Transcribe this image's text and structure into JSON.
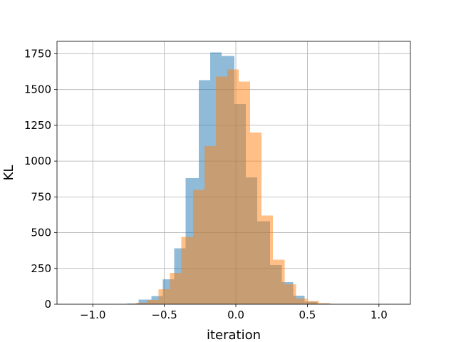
{
  "chart_data": {
    "type": "bar",
    "title": "",
    "xlabel": "iteration",
    "ylabel": "KL",
    "xlim": [
      -1.25,
      1.22
    ],
    "ylim": [
      0,
      1837
    ],
    "grid": true,
    "xticks": [
      -1.0,
      -0.5,
      0.0,
      0.5,
      1.0
    ],
    "xtick_labels": [
      "−1.0",
      "−0.5",
      "0.0",
      "0.5",
      "1.0"
    ],
    "yticks": [
      0,
      250,
      500,
      750,
      1000,
      1250,
      1500,
      1750
    ],
    "ytick_labels": [
      "0",
      "250",
      "500",
      "750",
      "1000",
      "1250",
      "1500",
      "1750"
    ],
    "series": [
      {
        "color": "#1f77b4",
        "alpha": 0.5,
        "bins": [
          [
            -0.86,
            -0.76,
            1
          ],
          [
            -0.76,
            -0.68,
            5
          ],
          [
            -0.68,
            -0.59,
            33
          ],
          [
            -0.59,
            -0.51,
            58
          ],
          [
            -0.51,
            -0.43,
            175
          ],
          [
            -0.43,
            -0.35,
            390
          ],
          [
            -0.35,
            -0.26,
            880
          ],
          [
            -0.26,
            -0.18,
            1565
          ],
          [
            -0.18,
            -0.1,
            1760
          ],
          [
            -0.1,
            -0.01,
            1735
          ],
          [
            -0.01,
            0.07,
            1400
          ],
          [
            0.07,
            0.15,
            885
          ],
          [
            0.15,
            0.24,
            580
          ],
          [
            0.24,
            0.32,
            275
          ],
          [
            0.32,
            0.4,
            155
          ],
          [
            0.4,
            0.48,
            60
          ],
          [
            0.48,
            0.57,
            18
          ],
          [
            0.57,
            0.65,
            5
          ]
        ]
      },
      {
        "color": "#ff7f0e",
        "alpha": 0.5,
        "bins": [
          [
            -0.78,
            -0.7,
            2
          ],
          [
            -0.7,
            -0.62,
            10
          ],
          [
            -0.62,
            -0.54,
            30
          ],
          [
            -0.54,
            -0.46,
            105
          ],
          [
            -0.46,
            -0.38,
            220
          ],
          [
            -0.38,
            -0.3,
            470
          ],
          [
            -0.3,
            -0.22,
            800
          ],
          [
            -0.22,
            -0.14,
            1105
          ],
          [
            -0.14,
            -0.06,
            1590
          ],
          [
            -0.06,
            0.02,
            1640
          ],
          [
            0.02,
            0.1,
            1555
          ],
          [
            0.1,
            0.18,
            1200
          ],
          [
            0.18,
            0.26,
            620
          ],
          [
            0.26,
            0.34,
            310
          ],
          [
            0.34,
            0.42,
            140
          ],
          [
            0.42,
            0.5,
            40
          ],
          [
            0.5,
            0.58,
            22
          ],
          [
            0.58,
            0.66,
            8
          ],
          [
            0.66,
            0.74,
            3
          ],
          [
            0.74,
            0.82,
            2
          ],
          [
            0.82,
            0.9,
            1
          ],
          [
            0.9,
            0.96,
            1
          ]
        ]
      }
    ]
  }
}
